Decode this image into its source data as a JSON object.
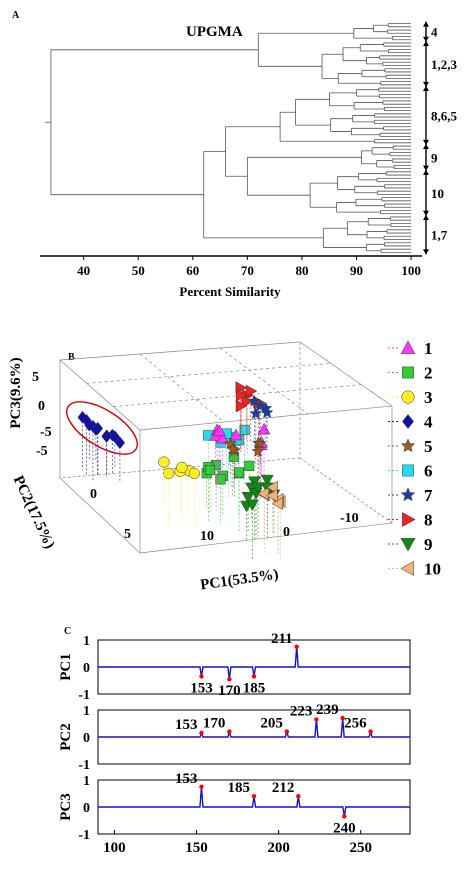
{
  "panel_a": {
    "letter": "A",
    "method": "UPGMA",
    "xlabel": "Percent Similarity",
    "ticks": [
      40,
      50,
      60,
      70,
      80,
      90,
      100
    ],
    "xlim": [
      32,
      102
    ],
    "clusters": [
      "4",
      "1,2,3",
      "8,6,5",
      "9",
      "10",
      "1,7"
    ]
  },
  "panel_b": {
    "letter": "B",
    "pc1_label": "PC1(53.5%)",
    "pc2_label": "PC2(17.5%)",
    "pc3_label": "PC3(9.6%)",
    "pc1_ticks": [
      "10",
      "0",
      "-10"
    ],
    "pc2_ticks": [
      "-5",
      "0",
      "5"
    ],
    "pc3_ticks": [
      "5",
      "0",
      "-5"
    ],
    "legend": [
      {
        "label": "1",
        "shape": "triangle-up",
        "color": "#ff33ff"
      },
      {
        "label": "2",
        "shape": "square",
        "color": "#33cc33"
      },
      {
        "label": "3",
        "shape": "circle",
        "color": "#ffee22"
      },
      {
        "label": "4",
        "shape": "diamond",
        "color": "#1111aa"
      },
      {
        "label": "5",
        "shape": "star",
        "color": "#a05a1e"
      },
      {
        "label": "6",
        "shape": "square",
        "color": "#22ddee"
      },
      {
        "label": "7",
        "shape": "star",
        "color": "#1a3ea8"
      },
      {
        "label": "8",
        "shape": "triangle-right",
        "color": "#ee2222"
      },
      {
        "label": "9",
        "shape": "triangle-down",
        "color": "#118811"
      },
      {
        "label": "10",
        "shape": "triangle-left",
        "color": "#f2b27a"
      }
    ],
    "ellipse_color": "#dd0000"
  },
  "panel_c": {
    "letter": "C",
    "line_color": "#1111cc",
    "peak_color": "#ff0000",
    "xlim": [
      90,
      280
    ],
    "ylim": [
      -1,
      1
    ],
    "xticks": [
      100,
      150,
      200,
      250
    ],
    "yticks": [
      "1",
      "0",
      "-1"
    ],
    "plots": [
      {
        "ylabel": "PC1",
        "peaks": [
          {
            "x": 153,
            "y": -0.35,
            "label": "153"
          },
          {
            "x": 170,
            "y": -0.45,
            "label": "170"
          },
          {
            "x": 185,
            "y": -0.35,
            "label": "185"
          },
          {
            "x": 211,
            "y": 0.75,
            "label": "211"
          }
        ]
      },
      {
        "ylabel": "PC2",
        "peaks": [
          {
            "x": 153,
            "y": 0.15,
            "label": "153"
          },
          {
            "x": 170,
            "y": 0.2,
            "label": "170"
          },
          {
            "x": 205,
            "y": 0.2,
            "label": "205"
          },
          {
            "x": 223,
            "y": 0.65,
            "label": "223"
          },
          {
            "x": 239,
            "y": 0.7,
            "label": "239"
          },
          {
            "x": 256,
            "y": 0.2,
            "label": "256"
          }
        ]
      },
      {
        "ylabel": "PC3",
        "peaks": [
          {
            "x": 153,
            "y": 0.75,
            "label": "153"
          },
          {
            "x": 185,
            "y": 0.4,
            "label": "185"
          },
          {
            "x": 212,
            "y": 0.4,
            "label": "212"
          },
          {
            "x": 240,
            "y": -0.35,
            "label": "240"
          }
        ]
      }
    ]
  }
}
